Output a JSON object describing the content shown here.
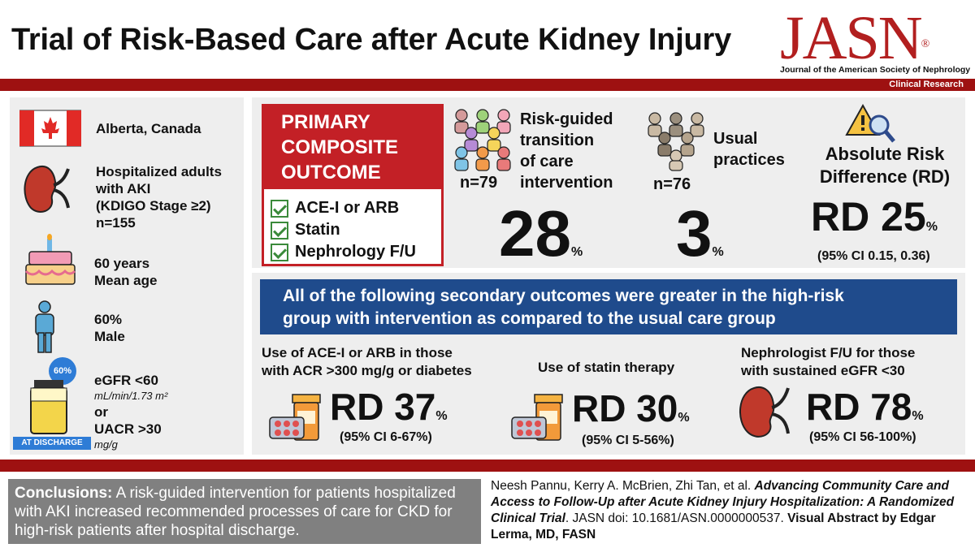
{
  "header": {
    "title": "Trial of Risk-Based Care after Acute Kidney Injury",
    "logo": "JASN",
    "logo_mark": "®",
    "journal": "Journal of the American Society of Nephrology",
    "section": "Clinical Research"
  },
  "population": {
    "location": "Alberta, Canada",
    "cohort_line1": "Hospitalized adults",
    "cohort_line2": "with AKI",
    "cohort_line3": "(KDIGO Stage ≥2)",
    "cohort_n": "n=155",
    "age_value": "60 years",
    "age_label": "Mean age",
    "male_value": "60%",
    "male_label": "Male",
    "egfr_badge": "60%",
    "egfr_line1": "eGFR <60",
    "egfr_unit": "mL/min/1.73 m²",
    "or": "or",
    "uacr_line": "UACR >30",
    "uacr_unit": "mg/g",
    "discharge": "AT DISCHARGE"
  },
  "primary": {
    "heading_line1": "PRIMARY",
    "heading_line2": "COMPOSITE",
    "heading_line3": "OUTCOME",
    "items": [
      "ACE-I or ARB",
      "Statin",
      "Nephrology F/U"
    ],
    "intervention_line1": "Risk-guided",
    "intervention_line2": "transition",
    "intervention_line3": "of care",
    "intervention_line4": "intervention",
    "intervention_n": "n=79",
    "intervention_value": "28",
    "usual_line1": "Usual",
    "usual_line2": "practices",
    "usual_n": "n=76",
    "usual_value": "3",
    "percent": "%",
    "rd_title1": "Absolute Risk",
    "rd_title2": "Difference (RD)",
    "rd_value": "RD 25",
    "rd_ci": "(95% CI 0.15, 0.36)"
  },
  "secondary": {
    "banner_line1": "All of the following secondary outcomes were greater in the high-risk",
    "banner_line2": "group with intervention as compared to the usual care group",
    "o1_line1": "Use of ACE-I or ARB in those",
    "o1_line2": "with ACR >300 mg/g  or diabetes",
    "o1_rd": "RD 37",
    "o1_ci": "(95% CI 6-67%)",
    "o2_line1": "Use of statin therapy",
    "o2_rd": "RD 30",
    "o2_ci": "(95% CI 5-56%)",
    "o3_line1": "Nephrologist F/U  for those",
    "o3_line2": "with sustained eGFR <30",
    "o3_rd": "RD 78",
    "o3_ci": "(95% CI 56-100%)"
  },
  "conclusion": {
    "label": "Conclusions:",
    "text": " A risk-guided intervention for patients hospitalized with AKI increased recommended processes of care for CKD for high-risk patients after hospital discharge."
  },
  "citation": {
    "authors": "Neesh Pannu, Kerry A. McBrien, Zhi Tan, et al. ",
    "title": "Advancing Community Care and Access to Follow-Up after Acute Kidney Injury Hospitalization: A Randomized Clinical Trial",
    "journal": ". JASN doi: 10.1681/ASN.0000000537. ",
    "credit": "Visual Abstract by Edgar Lerma, MD, FASN"
  },
  "colors": {
    "red": "#9e1111",
    "accent_red": "#c32026",
    "blue": "#1f4b8c",
    "panel": "#eeeeee",
    "check": "#3a8a3a"
  }
}
